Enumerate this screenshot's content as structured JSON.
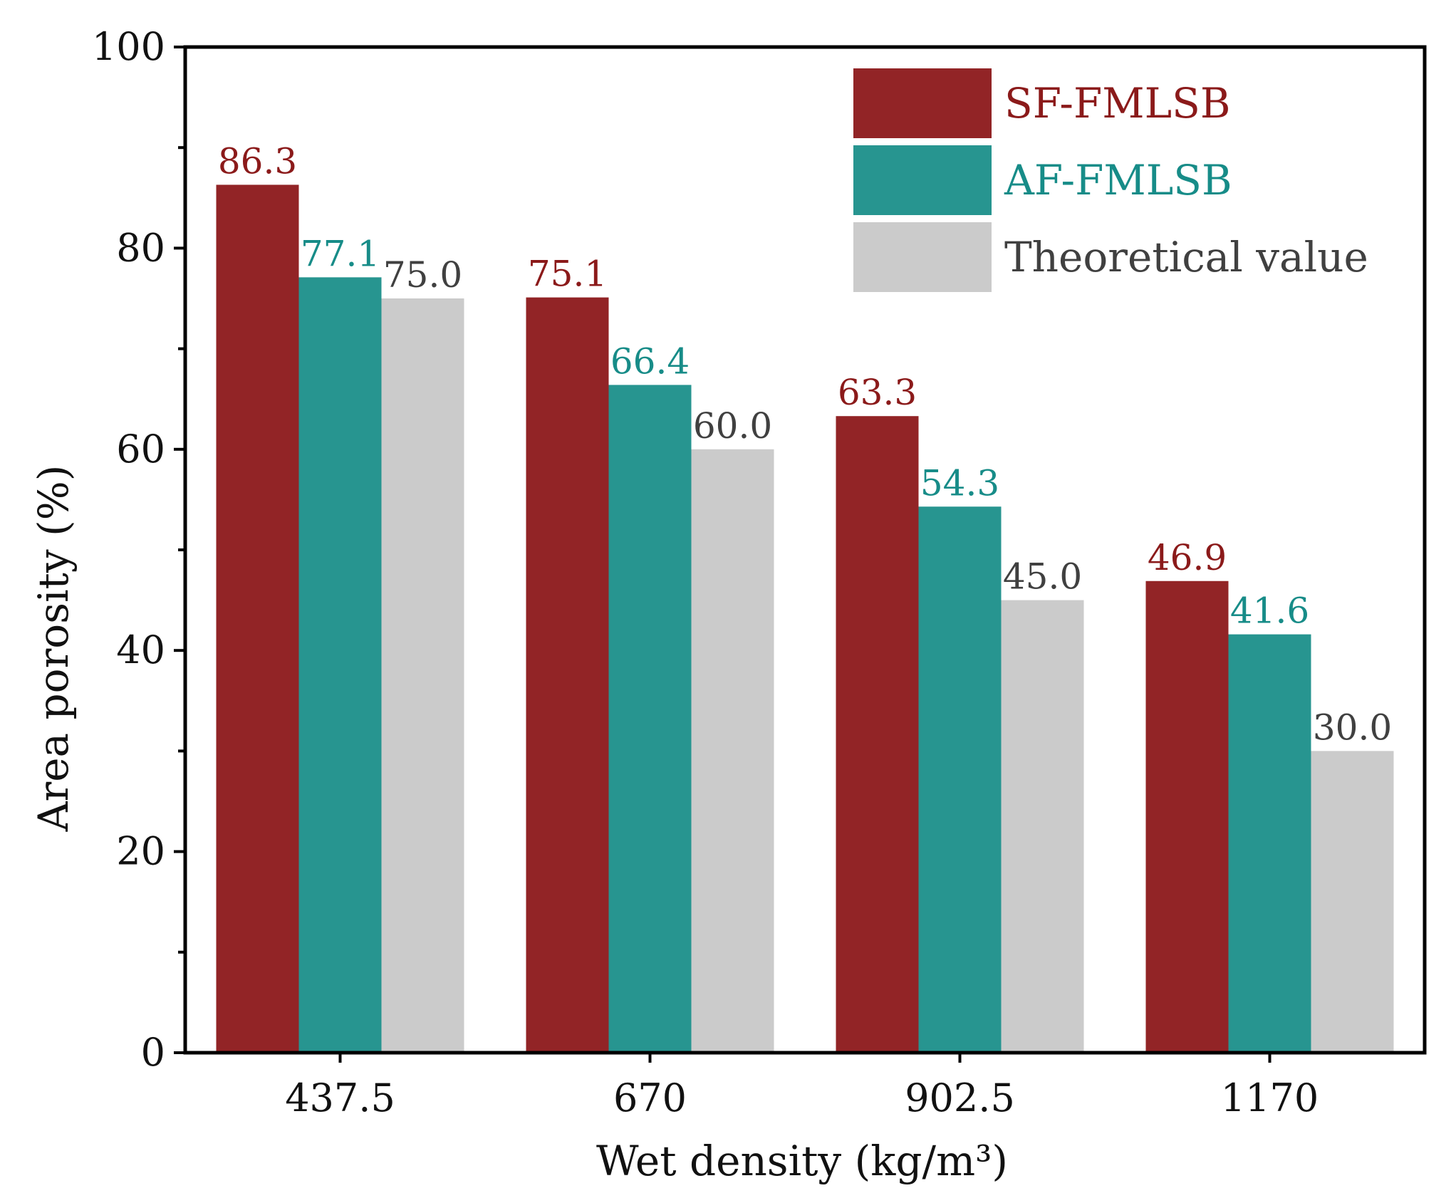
{
  "chart_data": {
    "type": "bar",
    "title": "",
    "xlabel": "Wet density (kg/m³)",
    "ylabel": "Area porosity (%)",
    "ylim": [
      0,
      100
    ],
    "yticks": [
      0,
      20,
      40,
      60,
      80,
      100
    ],
    "yminor_step": 10,
    "grid": false,
    "legend_position": "top-right",
    "categories": [
      "437.5",
      "670",
      "902.5",
      "1170"
    ],
    "series": [
      {
        "name": "SF-FMLSB",
        "color": "#922426",
        "label_color": "#8b1a1a",
        "values": [
          86.3,
          75.1,
          63.3,
          46.9
        ],
        "labels": [
          "86.3",
          "75.1",
          "63.3",
          "46.9"
        ]
      },
      {
        "name": "AF-FMLSB",
        "color": "#279590",
        "label_color": "#178c88",
        "values": [
          77.1,
          66.4,
          54.3,
          41.6
        ],
        "labels": [
          "77.1",
          "66.4",
          "54.3",
          "41.6"
        ]
      },
      {
        "name": "Theoretical value",
        "color": "#cbcbcb",
        "label_color": "#404040",
        "values": [
          75.0,
          60.0,
          45.0,
          30.0
        ],
        "labels": [
          "75.0",
          "60.0",
          "45.0",
          "30.0"
        ]
      }
    ]
  }
}
